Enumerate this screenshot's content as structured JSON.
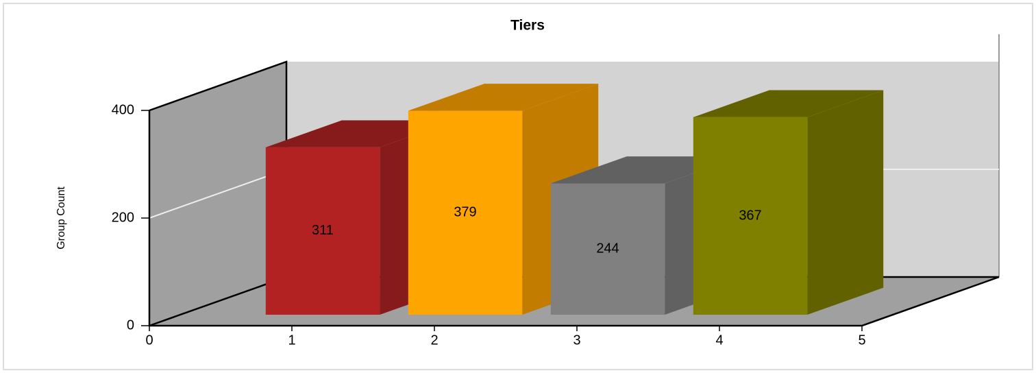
{
  "chart_data": {
    "type": "bar3d",
    "title": "Tiers",
    "y_label": "Group Count",
    "x": [
      1,
      2,
      3,
      4
    ],
    "values": [
      311,
      379,
      244,
      367
    ],
    "colors": [
      "#b22222",
      "#ffa500",
      "#808080",
      "#808000"
    ],
    "xlim": [
      0,
      5
    ],
    "xticks": [
      0,
      1,
      2,
      3,
      4,
      5
    ],
    "ylim": [
      0,
      400
    ],
    "yticks": [
      0,
      200,
      400
    ],
    "grid": true
  }
}
